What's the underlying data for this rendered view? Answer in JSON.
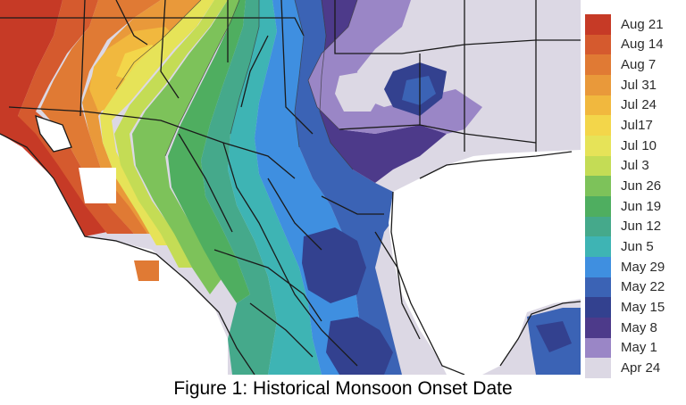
{
  "legend": {
    "items": [
      {
        "label": "Aug 21",
        "color": "#c63a26"
      },
      {
        "label": "Aug 14",
        "color": "#d55a2e"
      },
      {
        "label": "Aug 7",
        "color": "#e07a34"
      },
      {
        "label": "Jul 31",
        "color": "#e9993a"
      },
      {
        "label": "Jul 24",
        "color": "#f1b83e"
      },
      {
        "label": "Jul17",
        "color": "#f3d64a"
      },
      {
        "label": "Jul 10",
        "color": "#e6e358"
      },
      {
        "label": "Jul 3",
        "color": "#c4dc55"
      },
      {
        "label": "Jun 26",
        "color": "#7dc25a"
      },
      {
        "label": "Jun 19",
        "color": "#4fae60"
      },
      {
        "label": "Jun 12",
        "color": "#45a98b"
      },
      {
        "label": "Jun 5",
        "color": "#3eb4b4"
      },
      {
        "label": "May 29",
        "color": "#3f8fe0"
      },
      {
        "label": "May 22",
        "color": "#3b63b5"
      },
      {
        "label": "May 15",
        "color": "#33418f"
      },
      {
        "label": "May 8",
        "color": "#4d3a8a"
      },
      {
        "label": "May 1",
        "color": "#9a86c6"
      },
      {
        "label": "Apr 24",
        "color": "#dcd8e4"
      }
    ]
  },
  "caption": "Figure 1: Historical Monsoon Onset Date",
  "colors": {
    "ocean": "#ffffff",
    "boundary": "#1a1a1a"
  }
}
